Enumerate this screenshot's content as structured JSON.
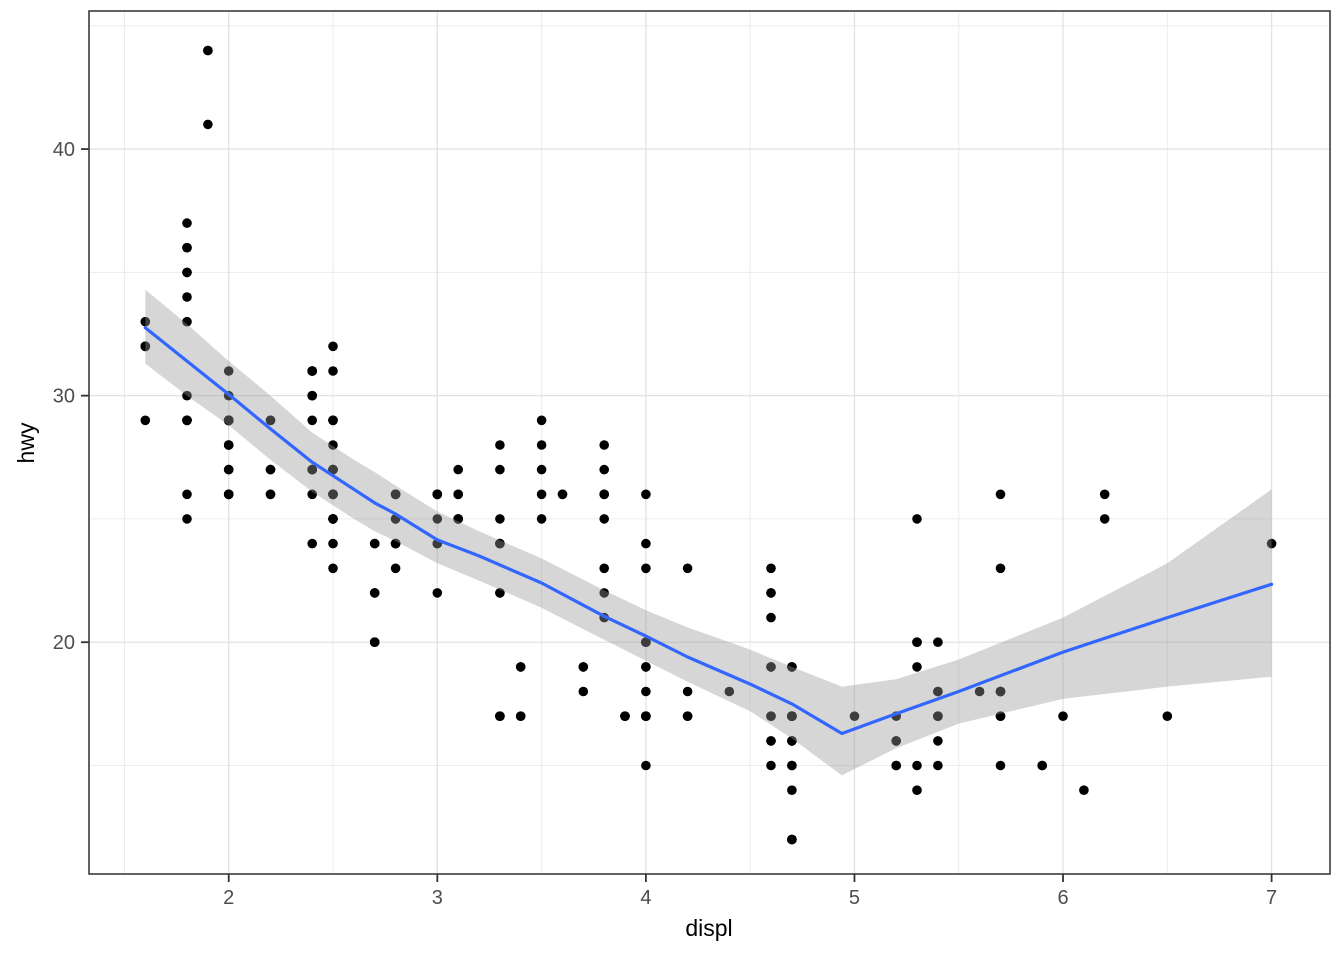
{
  "figure": {
    "background": "#ffffff"
  },
  "chart_data": {
    "type": "scatter",
    "title": "",
    "xlabel": "displ",
    "ylabel": "hwy",
    "x_ticks": [
      2,
      3,
      4,
      5,
      6,
      7
    ],
    "y_ticks": [
      20,
      30,
      40
    ],
    "x_minor_ticks": [
      1.5,
      2.5,
      3.5,
      4.5,
      5.5,
      6.5
    ],
    "y_minor_ticks": [
      15,
      25,
      35,
      45
    ],
    "xlim": [
      1.33,
      7.28
    ],
    "ylim": [
      10.6,
      45.6
    ],
    "grid": "on",
    "legend": "none",
    "points": [
      [
        1.8,
        29
      ],
      [
        1.8,
        29
      ],
      [
        2,
        31
      ],
      [
        2,
        30
      ],
      [
        2.8,
        26
      ],
      [
        2.8,
        26
      ],
      [
        3.1,
        27
      ],
      [
        1.8,
        26
      ],
      [
        1.8,
        25
      ],
      [
        2,
        28
      ],
      [
        2,
        27
      ],
      [
        2.8,
        25
      ],
      [
        2.8,
        25
      ],
      [
        3.1,
        25
      ],
      [
        3.1,
        25
      ],
      [
        2.8,
        24
      ],
      [
        3.1,
        25
      ],
      [
        4.2,
        23
      ],
      [
        5.3,
        20
      ],
      [
        5.3,
        15
      ],
      [
        5.3,
        20
      ],
      [
        5.7,
        17
      ],
      [
        6,
        17
      ],
      [
        5.7,
        26
      ],
      [
        5.7,
        23
      ],
      [
        6.2,
        26
      ],
      [
        6.2,
        25
      ],
      [
        7,
        24
      ],
      [
        5.3,
        19
      ],
      [
        5.3,
        14
      ],
      [
        5.7,
        15
      ],
      [
        6.5,
        17
      ],
      [
        2.4,
        27
      ],
      [
        2.4,
        30
      ],
      [
        3.1,
        26
      ],
      [
        3.5,
        29
      ],
      [
        3.6,
        26
      ],
      [
        2.4,
        24
      ],
      [
        3,
        24
      ],
      [
        3.3,
        22
      ],
      [
        3.3,
        22
      ],
      [
        3.3,
        24
      ],
      [
        3.3,
        24
      ],
      [
        3.3,
        17
      ],
      [
        3.8,
        22
      ],
      [
        3.8,
        21
      ],
      [
        3.8,
        23
      ],
      [
        4,
        23
      ],
      [
        3.7,
        19
      ],
      [
        3.7,
        18
      ],
      [
        3.9,
        17
      ],
      [
        3.9,
        17
      ],
      [
        4.7,
        19
      ],
      [
        4.7,
        19
      ],
      [
        4.7,
        12
      ],
      [
        5.2,
        17
      ],
      [
        5.2,
        15
      ],
      [
        3.9,
        17
      ],
      [
        4.7,
        17
      ],
      [
        4.7,
        12
      ],
      [
        4.7,
        17
      ],
      [
        5.2,
        16
      ],
      [
        5.7,
        18
      ],
      [
        5.9,
        15
      ],
      [
        4.7,
        16
      ],
      [
        4.7,
        12
      ],
      [
        4.7,
        17
      ],
      [
        4.7,
        17
      ],
      [
        4.7,
        16
      ],
      [
        4.7,
        12
      ],
      [
        5.2,
        15
      ],
      [
        5.2,
        16
      ],
      [
        5.7,
        17
      ],
      [
        5.9,
        15
      ],
      [
        4.6,
        17
      ],
      [
        5.4,
        17
      ],
      [
        5.4,
        18
      ],
      [
        4,
        17
      ],
      [
        4,
        17
      ],
      [
        4,
        17
      ],
      [
        4,
        19
      ],
      [
        4.6,
        19
      ],
      [
        4.2,
        17
      ],
      [
        4.2,
        17
      ],
      [
        4.6,
        16
      ],
      [
        4.6,
        16
      ],
      [
        4.6,
        17
      ],
      [
        5.4,
        15
      ],
      [
        5.4,
        17
      ],
      [
        3.8,
        26
      ],
      [
        3.8,
        25
      ],
      [
        4,
        26
      ],
      [
        4,
        24
      ],
      [
        4.6,
        21
      ],
      [
        4.6,
        22
      ],
      [
        4.6,
        23
      ],
      [
        4.6,
        22
      ],
      [
        5.4,
        20
      ],
      [
        1.6,
        33
      ],
      [
        1.6,
        32
      ],
      [
        1.6,
        32
      ],
      [
        1.6,
        29
      ],
      [
        1.6,
        32
      ],
      [
        1.8,
        34
      ],
      [
        1.8,
        36
      ],
      [
        1.8,
        36
      ],
      [
        2,
        29
      ],
      [
        2.4,
        26
      ],
      [
        2.4,
        27
      ],
      [
        2.4,
        30
      ],
      [
        2.4,
        31
      ],
      [
        2.5,
        26
      ],
      [
        2.5,
        26
      ],
      [
        3.3,
        28
      ],
      [
        2,
        26
      ],
      [
        2,
        29
      ],
      [
        2,
        28
      ],
      [
        2,
        27
      ],
      [
        2.7,
        24
      ],
      [
        2.7,
        24
      ],
      [
        3,
        22
      ],
      [
        3.7,
        19
      ],
      [
        4,
        20
      ],
      [
        4.7,
        17
      ],
      [
        4.7,
        14
      ],
      [
        4.7,
        19
      ],
      [
        5.7,
        18
      ],
      [
        6.1,
        14
      ],
      [
        4,
        15
      ],
      [
        4.2,
        18
      ],
      [
        4.4,
        18
      ],
      [
        4.6,
        15
      ],
      [
        5.4,
        17
      ],
      [
        5.4,
        16
      ],
      [
        5.4,
        18
      ],
      [
        4,
        17
      ],
      [
        4,
        19
      ],
      [
        4.6,
        19
      ],
      [
        5,
        17
      ],
      [
        2.4,
        29
      ],
      [
        2.4,
        27
      ],
      [
        2.5,
        31
      ],
      [
        2.5,
        32
      ],
      [
        3.5,
        27
      ],
      [
        3.5,
        26
      ],
      [
        3,
        26
      ],
      [
        3,
        25
      ],
      [
        3.5,
        25
      ],
      [
        3.3,
        17
      ],
      [
        3.3,
        17
      ],
      [
        4,
        20
      ],
      [
        5.6,
        18
      ],
      [
        3.1,
        26
      ],
      [
        3.8,
        26
      ],
      [
        3.8,
        27
      ],
      [
        3.8,
        28
      ],
      [
        5.3,
        25
      ],
      [
        2.5,
        25
      ],
      [
        2.5,
        24
      ],
      [
        2.5,
        27
      ],
      [
        2.5,
        25
      ],
      [
        2.5,
        26
      ],
      [
        2.5,
        23
      ],
      [
        2.2,
        26
      ],
      [
        2.2,
        26
      ],
      [
        2.5,
        26
      ],
      [
        2.5,
        26
      ],
      [
        2.5,
        25
      ],
      [
        2.5,
        27
      ],
      [
        2.5,
        25
      ],
      [
        2.5,
        27
      ],
      [
        2.7,
        20
      ],
      [
        2.7,
        20
      ],
      [
        3.4,
        19
      ],
      [
        3.4,
        17
      ],
      [
        4,
        20
      ],
      [
        4.7,
        17
      ],
      [
        2.2,
        29
      ],
      [
        2.2,
        27
      ],
      [
        2.4,
        31
      ],
      [
        2.4,
        31
      ],
      [
        3,
        26
      ],
      [
        3,
        26
      ],
      [
        3.5,
        28
      ],
      [
        2.2,
        27
      ],
      [
        2.2,
        29
      ],
      [
        2.4,
        31
      ],
      [
        2.4,
        31
      ],
      [
        3,
        26
      ],
      [
        3.3,
        27
      ],
      [
        1.8,
        30
      ],
      [
        1.8,
        33
      ],
      [
        1.8,
        35
      ],
      [
        1.8,
        37
      ],
      [
        1.8,
        35
      ],
      [
        4.7,
        15
      ],
      [
        5.7,
        18
      ],
      [
        4.7,
        15
      ],
      [
        4.7,
        17
      ],
      [
        3,
        24
      ],
      [
        3.3,
        25
      ],
      [
        2.7,
        22
      ],
      [
        2.7,
        20
      ],
      [
        2.7,
        22
      ],
      [
        3.4,
        17
      ],
      [
        3.4,
        19
      ],
      [
        4,
        18
      ],
      [
        4.7,
        17
      ],
      [
        4.7,
        16
      ],
      [
        4.7,
        17
      ],
      [
        5.7,
        18
      ],
      [
        2,
        29
      ],
      [
        2,
        26
      ],
      [
        2,
        29
      ],
      [
        2,
        29
      ],
      [
        2.8,
        24
      ],
      [
        1.9,
        44
      ],
      [
        2,
        29
      ],
      [
        2,
        26
      ],
      [
        2,
        29
      ],
      [
        2,
        29
      ],
      [
        2.5,
        29
      ],
      [
        2.5,
        29
      ],
      [
        2.8,
        23
      ],
      [
        2.8,
        24
      ],
      [
        1.9,
        44
      ],
      [
        1.9,
        41
      ],
      [
        2,
        29
      ],
      [
        2,
        26
      ],
      [
        2.5,
        28
      ],
      [
        2.5,
        29
      ],
      [
        1.8,
        29
      ],
      [
        1.8,
        29
      ],
      [
        2,
        28
      ],
      [
        2,
        29
      ],
      [
        2.8,
        26
      ],
      [
        2.8,
        26
      ],
      [
        3.6,
        26
      ]
    ],
    "smooth_line": {
      "x": [
        1.6,
        1.8,
        2.0,
        2.2,
        2.4,
        2.6,
        2.7,
        2.8,
        3.0,
        3.2,
        3.5,
        3.8,
        4.0,
        4.2,
        4.5,
        4.7,
        4.94,
        5.2,
        5.5,
        6.0,
        6.5,
        7.0
      ],
      "y": [
        32.75,
        31.4,
        30.05,
        28.65,
        27.3,
        26.2,
        25.65,
        25.2,
        24.15,
        23.5,
        22.4,
        21.05,
        20.25,
        19.4,
        18.3,
        17.5,
        16.3,
        17.1,
        18.0,
        19.6,
        21.0,
        22.35
      ]
    },
    "ribbon": {
      "x": [
        1.6,
        1.8,
        2.0,
        2.2,
        2.4,
        2.6,
        2.7,
        2.8,
        3.0,
        3.2,
        3.5,
        3.8,
        4.0,
        4.2,
        4.5,
        4.7,
        4.94,
        5.2,
        5.5,
        6.0,
        6.5,
        7.0
      ],
      "upper": [
        34.3,
        32.9,
        31.4,
        30.0,
        28.5,
        27.4,
        26.9,
        26.35,
        25.3,
        24.5,
        23.4,
        22.1,
        21.3,
        20.6,
        19.7,
        19.0,
        18.2,
        18.5,
        19.3,
        21.0,
        23.2,
        26.2
      ],
      "lower": [
        31.3,
        30.0,
        28.8,
        27.4,
        26.1,
        25.0,
        24.5,
        24.1,
        23.2,
        22.5,
        21.4,
        20.1,
        19.25,
        18.4,
        17.2,
        16.1,
        14.6,
        15.7,
        16.7,
        17.7,
        18.2,
        18.6
      ]
    },
    "style": {
      "line_color": "#3366FF",
      "line_width": 3.2,
      "ribbon_color": "#999999",
      "ribbon_opacity": 0.4,
      "point_color": "#000000",
      "point_radius": 4.8,
      "panel_background": "#FFFFFF",
      "panel_border_color": "#3C3C3C",
      "grid_major_color": "#E2E2E2",
      "grid_minor_color": "#ECECEC",
      "tick_mark_color": "#333333",
      "tick_label_color": "#4D4D4D",
      "axis_title_color": "#000000"
    }
  }
}
